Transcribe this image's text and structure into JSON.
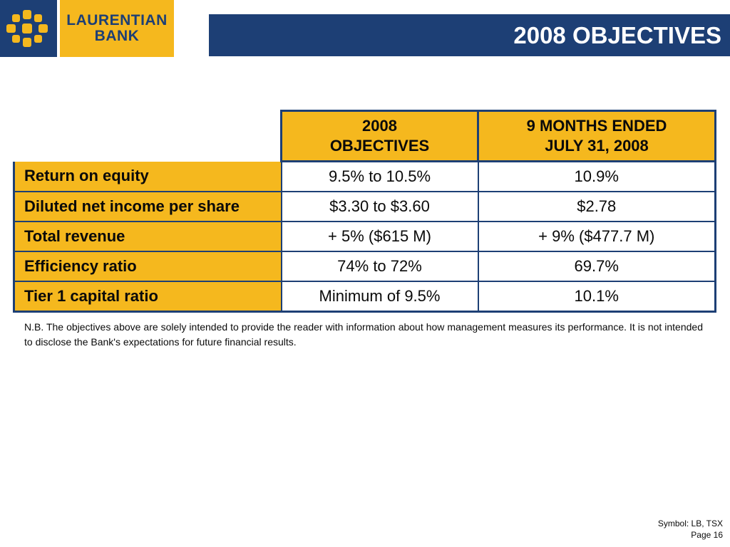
{
  "logo": {
    "line1": "LAURENTIAN",
    "line2": "BANK",
    "icon": "laurentian-maple-leaf-icon",
    "colors": {
      "blue": "#1d3f75",
      "gold": "#f5b81e"
    }
  },
  "header": {
    "title": "2008 OBJECTIVES"
  },
  "table": {
    "columns": [
      "2008 OBJECTIVES",
      "9 MONTHS ENDED JULY 31, 2008"
    ],
    "column_lines": [
      [
        "2008",
        "OBJECTIVES"
      ],
      [
        "9 MONTHS ENDED",
        "JULY 31, 2008"
      ]
    ],
    "rows": [
      {
        "label": "Return on equity",
        "objective": "9.5% to 10.5%",
        "actual": "10.9%"
      },
      {
        "label": "Diluted net income per share",
        "objective": "$3.30 to $3.60",
        "actual": "$2.78"
      },
      {
        "label": "Total revenue",
        "objective": "+ 5% ($615 M)",
        "actual": "+ 9% ($477.7 M)"
      },
      {
        "label": "Efficiency ratio",
        "objective": "74% to 72%",
        "actual": "69.7%"
      },
      {
        "label": "Tier 1 capital ratio",
        "objective": "Minimum of 9.5%",
        "actual": "10.1%"
      }
    ]
  },
  "note": "N.B. The objectives above are solely intended to provide the reader with information about how management measures its performance. It is not intended to disclose the Bank's expectations for future financial results.",
  "footer": {
    "symbol": "Symbol: LB, TSX",
    "page": "Page 16"
  }
}
